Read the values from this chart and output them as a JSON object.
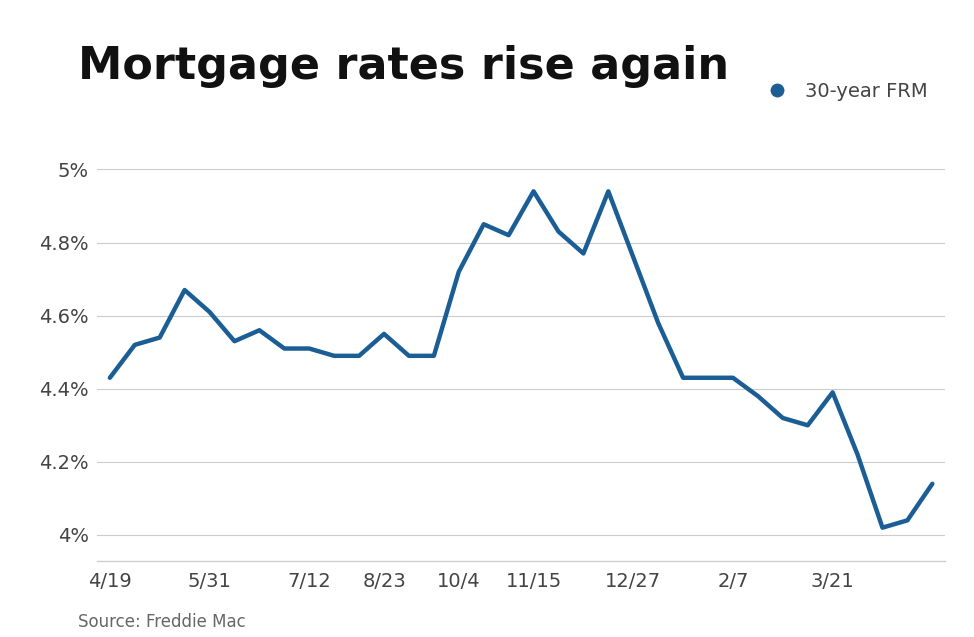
{
  "title": "Mortgage rates rise again",
  "legend_label": "30-year FRM",
  "source": "Source: Freddie Mac",
  "line_color": "#1b5e96",
  "background_color": "#ffffff",
  "x_labels": [
    "4/19",
    "5/31",
    "7/12",
    "8/23",
    "10/4",
    "11/15",
    "12/27",
    "2/7",
    "3/21"
  ],
  "y_ticks": [
    4.0,
    4.2,
    4.4,
    4.6,
    4.8,
    5.0
  ],
  "y_tick_labels": [
    "4%",
    "4.2%",
    "4.4%",
    "4.6%",
    "4.8%",
    "5%"
  ],
  "ylim": [
    3.93,
    5.08
  ],
  "data_x": [
    0,
    1,
    2,
    3,
    4,
    5,
    6,
    7,
    8,
    9,
    10,
    11,
    12,
    13,
    14,
    15,
    16,
    17,
    18,
    19,
    20,
    21,
    22,
    23,
    24,
    25,
    26,
    27,
    28,
    29,
    30,
    31,
    32,
    33
  ],
  "data_y": [
    4.43,
    4.52,
    4.54,
    4.67,
    4.61,
    4.53,
    4.56,
    4.51,
    4.51,
    4.49,
    4.49,
    4.55,
    4.49,
    4.49,
    4.72,
    4.85,
    4.82,
    4.94,
    4.83,
    4.77,
    4.94,
    4.76,
    4.58,
    4.43,
    4.43,
    4.43,
    4.38,
    4.32,
    4.3,
    4.39,
    4.22,
    4.02,
    4.04,
    4.14
  ],
  "x_tick_indices": [
    0,
    4,
    8,
    11,
    14,
    17,
    21,
    25,
    29
  ],
  "title_fontsize": 32,
  "axis_fontsize": 14,
  "legend_fontsize": 14,
  "source_fontsize": 12,
  "line_width": 3.2,
  "legend_marker_color": "#1b5e96",
  "grid_color": "#cccccc",
  "tick_color": "#444444",
  "spine_color": "#cccccc"
}
